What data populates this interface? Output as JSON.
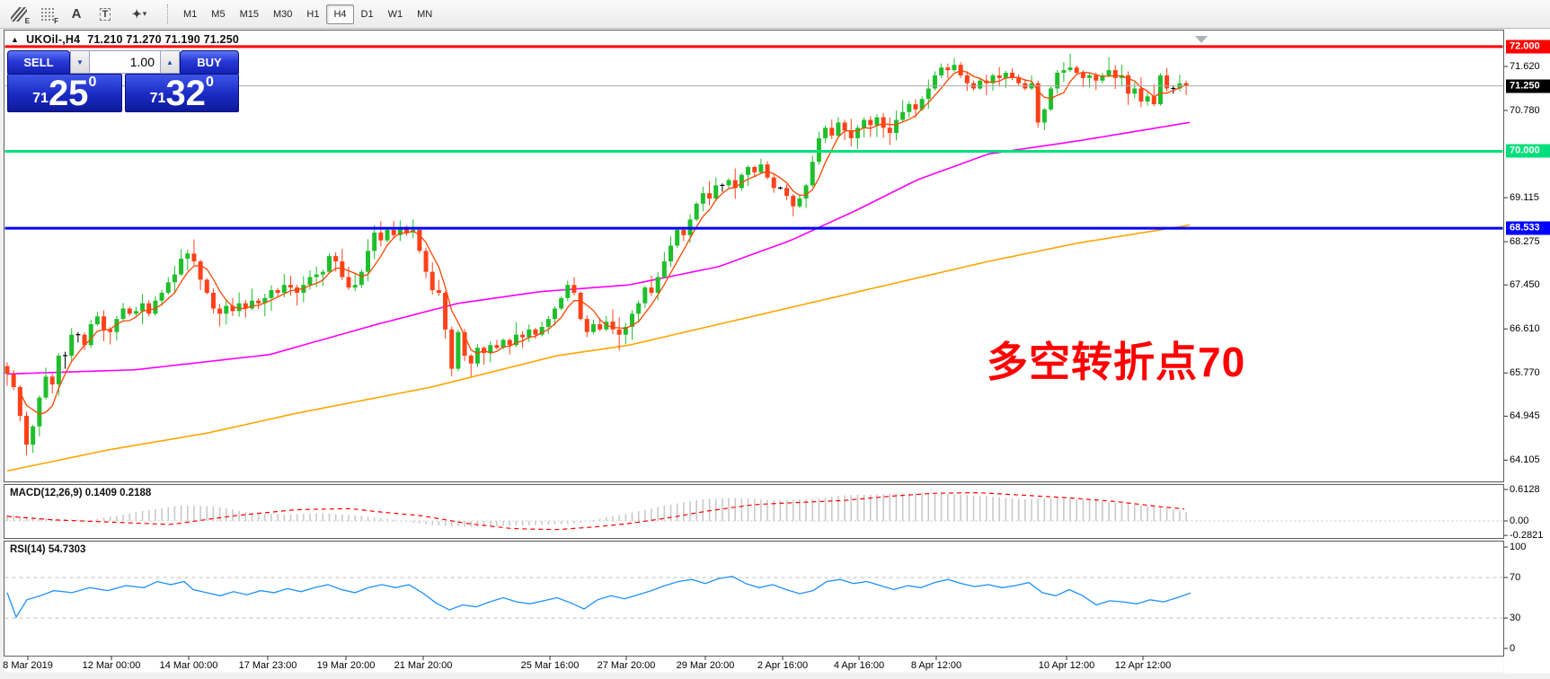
{
  "toolbar": {
    "tools": [
      {
        "name": "equidistant-channel-icon",
        "sub": "E"
      },
      {
        "name": "fibonacci-retracement-icon",
        "sub": "F"
      },
      {
        "name": "text-icon",
        "glyph": "A"
      },
      {
        "name": "text-label-icon",
        "glyph": "T"
      },
      {
        "name": "arrows-tool-icon",
        "glyph": "✦",
        "caret": "▾"
      }
    ],
    "timeframes": [
      "M1",
      "M5",
      "M15",
      "M30",
      "H1",
      "H4",
      "D1",
      "W1",
      "MN"
    ],
    "active_timeframe": "H4"
  },
  "header": {
    "symbol": "UKOil-,H4",
    "ohlc": "71.210 71.270 71.190 71.250"
  },
  "icons": {
    "triangle_up": "▲",
    "caret_down": "▼",
    "caret_up": "▲"
  },
  "trade_panel": {
    "sell_label": "SELL",
    "buy_label": "BUY",
    "volume": "1.00",
    "sell_price": {
      "prefix": "71",
      "big": "25",
      "sup": "0"
    },
    "buy_price": {
      "prefix": "71",
      "big": "32",
      "sup": "0"
    }
  },
  "annotation": {
    "text": "多空转折点70",
    "color": "#FF0000"
  },
  "indicators": {
    "macd": {
      "label": "MACD(12,26,9) 0.1409 0.2188",
      "axis": [
        [
          "0.6128",
          0.6128
        ],
        [
          "0.00",
          0
        ],
        [
          "-0.2821",
          -0.2821
        ]
      ]
    },
    "rsi": {
      "label": "RSI(14) 54.7303",
      "axis": [
        [
          "100",
          100
        ],
        [
          "70",
          70
        ],
        [
          "30",
          30
        ],
        [
          "0",
          0
        ]
      ],
      "levels": [
        70,
        30
      ]
    }
  },
  "axis": {
    "price_ticks": [
      71.62,
      70.78,
      69.115,
      68.275,
      67.45,
      66.61,
      65.77,
      64.945,
      64.105
    ]
  },
  "chart_data": {
    "type": "candlestick",
    "symbol": "UKOil-",
    "timeframe": "H4",
    "title": "UKOil-,H4 71.210 71.270 71.190 71.250",
    "ylim": [
      63.75,
      72.25
    ],
    "levels": [
      {
        "price": 72.0,
        "label": "72.000",
        "color": "#FF0000"
      },
      {
        "price": 70.0,
        "label": "70.000",
        "color": "#00DF7C"
      },
      {
        "price": 68.533,
        "label": "68.533",
        "color": "#0000FF"
      }
    ],
    "current_price": {
      "price": 71.25,
      "label": "71.250",
      "line_color": "#A9A9A9",
      "badge_color": "#000000"
    },
    "open_first": 65.9,
    "closes": [
      65.75,
      65.5,
      64.95,
      64.4,
      64.75,
      65.3,
      65.7,
      65.55,
      66.1,
      66.1,
      66.5,
      66.5,
      66.3,
      66.7,
      66.85,
      66.6,
      66.55,
      66.8,
      67.0,
      66.9,
      66.95,
      67.1,
      66.9,
      67.15,
      67.3,
      67.5,
      67.65,
      67.95,
      68.05,
      67.9,
      67.55,
      67.3,
      67.0,
      66.9,
      67.05,
      66.95,
      67.1,
      67.0,
      67.15,
      67.1,
      67.2,
      67.35,
      67.3,
      67.45,
      67.4,
      67.3,
      67.45,
      67.6,
      67.65,
      67.7,
      68.0,
      67.9,
      67.6,
      67.4,
      67.45,
      67.7,
      68.1,
      68.45,
      68.3,
      68.5,
      68.4,
      68.55,
      68.45,
      68.5,
      68.1,
      67.7,
      67.35,
      67.3,
      66.6,
      65.85,
      66.55,
      66.1,
      65.95,
      66.25,
      66.15,
      66.3,
      66.25,
      66.4,
      66.3,
      66.5,
      66.45,
      66.6,
      66.5,
      66.65,
      66.8,
      67.0,
      67.2,
      67.45,
      67.3,
      66.8,
      66.55,
      66.7,
      66.6,
      66.75,
      66.6,
      66.5,
      66.65,
      66.9,
      67.1,
      67.4,
      67.3,
      67.6,
      67.9,
      68.2,
      68.5,
      68.4,
      68.7,
      69.0,
      69.2,
      69.1,
      69.35,
      69.35,
      69.45,
      69.3,
      69.55,
      69.7,
      69.6,
      69.75,
      69.5,
      69.3,
      69.3,
      69.15,
      68.95,
      69.1,
      69.35,
      69.8,
      70.25,
      70.45,
      70.3,
      70.55,
      70.4,
      70.25,
      70.45,
      70.6,
      70.5,
      70.65,
      70.45,
      70.35,
      70.6,
      70.75,
      70.9,
      70.8,
      71.0,
      71.2,
      71.45,
      71.6,
      71.55,
      71.65,
      71.45,
      71.3,
      71.2,
      71.35,
      71.3,
      71.45,
      71.4,
      71.5,
      71.4,
      71.3,
      71.2,
      71.3,
      70.55,
      70.8,
      71.2,
      71.5,
      71.55,
      71.6,
      71.5,
      71.4,
      71.45,
      71.35,
      71.45,
      71.55,
      71.4,
      71.45,
      71.1,
      71.2,
      70.95,
      71.05,
      70.9,
      71.45,
      71.2,
      71.2,
      71.3,
      71.25
    ],
    "wick_overrides": {
      "3": {
        "low": 64.2
      },
      "9": {
        "low": 65.85
      },
      "29": {
        "high": 68.32
      },
      "61": {
        "high": 68.68
      },
      "63": {
        "high": 68.7
      },
      "72": {
        "low": 65.7
      },
      "95": {
        "low": 66.2
      },
      "147": {
        "high": 71.78
      },
      "160": {
        "low": 70.45
      },
      "165": {
        "high": 71.86
      }
    },
    "ma_magenta": [
      [
        8,
        65.75
      ],
      [
        150,
        65.83
      ],
      [
        300,
        66.12
      ],
      [
        420,
        66.7
      ],
      [
        510,
        67.1
      ],
      [
        600,
        67.32
      ],
      [
        700,
        67.45
      ],
      [
        800,
        67.8
      ],
      [
        880,
        68.3
      ],
      [
        950,
        68.85
      ],
      [
        1020,
        69.45
      ],
      [
        1100,
        69.95
      ],
      [
        1200,
        70.2
      ],
      [
        1327,
        70.56
      ]
    ],
    "ma_orange": [
      [
        8,
        63.9
      ],
      [
        120,
        64.3
      ],
      [
        230,
        64.62
      ],
      [
        330,
        65.0
      ],
      [
        480,
        65.5
      ],
      [
        620,
        66.1
      ],
      [
        700,
        66.3
      ],
      [
        800,
        66.7
      ],
      [
        900,
        67.1
      ],
      [
        1000,
        67.5
      ],
      [
        1100,
        67.9
      ],
      [
        1200,
        68.25
      ],
      [
        1327,
        68.6
      ]
    ],
    "colors": {
      "up": "#1FBF2C",
      "down": "#FF4119",
      "doji": "#000000",
      "ma_fast": "#FF4500",
      "ma_mid": "#FF00FF",
      "ma_slow": "#FFA500",
      "rsi": "#1E90FF",
      "hist": "#C9C9C9",
      "signal": "#FF0000",
      "level_red": "#FF0000",
      "level_green": "#00DF7C",
      "level_blue": "#0000FF"
    },
    "macd": {
      "current_values": [
        0.1409,
        0.2188
      ],
      "signal": [
        [
          8,
          0.09
        ],
        [
          60,
          0.02
        ],
        [
          120,
          -0.02
        ],
        [
          190,
          -0.07
        ],
        [
          260,
          0.1
        ],
        [
          330,
          0.22
        ],
        [
          390,
          0.24
        ],
        [
          420,
          0.18
        ],
        [
          470,
          0.1
        ],
        [
          520,
          -0.05
        ],
        [
          570,
          -0.15
        ],
        [
          620,
          -0.17
        ],
        [
          660,
          -0.12
        ],
        [
          700,
          -0.05
        ],
        [
          740,
          0.05
        ],
        [
          790,
          0.2
        ],
        [
          840,
          0.32
        ],
        [
          890,
          0.36
        ],
        [
          940,
          0.4
        ],
        [
          990,
          0.48
        ],
        [
          1040,
          0.54
        ],
        [
          1090,
          0.55
        ],
        [
          1140,
          0.5
        ],
        [
          1190,
          0.45
        ],
        [
          1240,
          0.38
        ],
        [
          1290,
          0.28
        ],
        [
          1327,
          0.2188
        ]
      ],
      "hist": [
        [
          8,
          0.12
        ],
        [
          50,
          0.05
        ],
        [
          100,
          0.02
        ],
        [
          130,
          0.1
        ],
        [
          160,
          0.2
        ],
        [
          200,
          0.3
        ],
        [
          240,
          0.28
        ],
        [
          280,
          0.15
        ],
        [
          320,
          0.12
        ],
        [
          360,
          0.15
        ],
        [
          400,
          0.1
        ],
        [
          440,
          0.02
        ],
        [
          480,
          -0.08
        ],
        [
          520,
          -0.12
        ],
        [
          560,
          -0.1
        ],
        [
          600,
          -0.08
        ],
        [
          640,
          -0.05
        ],
        [
          660,
          0.02
        ],
        [
          700,
          0.15
        ],
        [
          740,
          0.3
        ],
        [
          780,
          0.42
        ],
        [
          820,
          0.45
        ],
        [
          860,
          0.4
        ],
        [
          900,
          0.42
        ],
        [
          940,
          0.5
        ],
        [
          980,
          0.52
        ],
        [
          1020,
          0.55
        ],
        [
          1060,
          0.52
        ],
        [
          1100,
          0.48
        ],
        [
          1140,
          0.42
        ],
        [
          1180,
          0.45
        ],
        [
          1220,
          0.4
        ],
        [
          1260,
          0.32
        ],
        [
          1300,
          0.25
        ],
        [
          1327,
          0.1409
        ]
      ]
    },
    "rsi_points": [
      [
        8,
        55
      ],
      [
        18,
        31
      ],
      [
        30,
        48
      ],
      [
        45,
        52
      ],
      [
        60,
        57
      ],
      [
        80,
        55
      ],
      [
        100,
        60
      ],
      [
        120,
        57
      ],
      [
        140,
        62
      ],
      [
        160,
        60
      ],
      [
        175,
        66
      ],
      [
        190,
        63
      ],
      [
        205,
        66
      ],
      [
        215,
        58
      ],
      [
        230,
        55
      ],
      [
        245,
        52
      ],
      [
        260,
        56
      ],
      [
        275,
        53
      ],
      [
        290,
        57
      ],
      [
        305,
        55
      ],
      [
        320,
        59
      ],
      [
        335,
        56
      ],
      [
        350,
        60
      ],
      [
        365,
        63
      ],
      [
        380,
        58
      ],
      [
        395,
        55
      ],
      [
        410,
        60
      ],
      [
        425,
        63
      ],
      [
        440,
        60
      ],
      [
        455,
        63
      ],
      [
        470,
        55
      ],
      [
        485,
        45
      ],
      [
        500,
        38
      ],
      [
        515,
        43
      ],
      [
        530,
        41
      ],
      [
        545,
        46
      ],
      [
        560,
        50
      ],
      [
        575,
        46
      ],
      [
        590,
        44
      ],
      [
        605,
        47
      ],
      [
        620,
        50
      ],
      [
        635,
        45
      ],
      [
        650,
        39
      ],
      [
        665,
        48
      ],
      [
        680,
        52
      ],
      [
        695,
        49
      ],
      [
        710,
        53
      ],
      [
        725,
        57
      ],
      [
        740,
        62
      ],
      [
        755,
        66
      ],
      [
        770,
        68
      ],
      [
        785,
        64
      ],
      [
        800,
        69
      ],
      [
        815,
        71
      ],
      [
        830,
        64
      ],
      [
        845,
        60
      ],
      [
        860,
        63
      ],
      [
        875,
        58
      ],
      [
        890,
        54
      ],
      [
        905,
        57
      ],
      [
        920,
        66
      ],
      [
        935,
        68
      ],
      [
        950,
        64
      ],
      [
        965,
        66
      ],
      [
        980,
        62
      ],
      [
        995,
        58
      ],
      [
        1010,
        62
      ],
      [
        1025,
        60
      ],
      [
        1040,
        65
      ],
      [
        1055,
        68
      ],
      [
        1070,
        64
      ],
      [
        1085,
        61
      ],
      [
        1100,
        63
      ],
      [
        1115,
        60
      ],
      [
        1130,
        62
      ],
      [
        1145,
        65
      ],
      [
        1160,
        55
      ],
      [
        1175,
        52
      ],
      [
        1190,
        58
      ],
      [
        1205,
        52
      ],
      [
        1220,
        43
      ],
      [
        1235,
        47
      ],
      [
        1250,
        46
      ],
      [
        1265,
        44
      ],
      [
        1280,
        48
      ],
      [
        1295,
        46
      ],
      [
        1310,
        50
      ],
      [
        1325,
        54.7
      ]
    ],
    "rsi_value": 54.7303,
    "x_labels": [
      [
        31,
        "8 Mar 2019"
      ],
      [
        124,
        "12 Mar 00:00"
      ],
      [
        210,
        "14 Mar 00:00"
      ],
      [
        298,
        "17 Mar 23:00"
      ],
      [
        385,
        "19 Mar 20:00"
      ],
      [
        471,
        "21 Mar 20:00"
      ],
      [
        612,
        "25 Mar 16:00"
      ],
      [
        697,
        "27 Mar 20:00"
      ],
      [
        785,
        "29 Mar 20:00"
      ],
      [
        871,
        "2 Apr 16:00"
      ],
      [
        956,
        "4 Apr 16:00"
      ],
      [
        1042,
        "8 Apr 12:00"
      ],
      [
        1187,
        "10 Apr 12:00"
      ],
      [
        1272,
        "12 Apr 12:00"
      ]
    ]
  }
}
